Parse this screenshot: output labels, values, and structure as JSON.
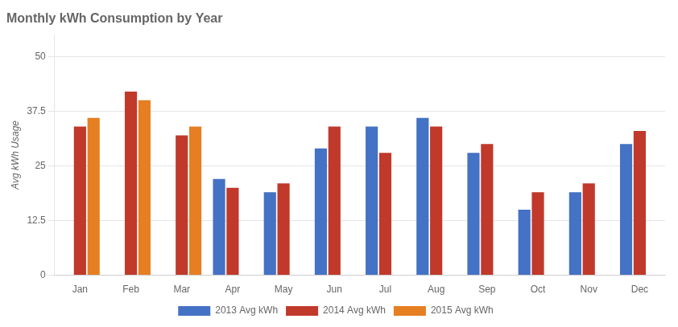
{
  "chart_data": {
    "type": "bar",
    "title": "Monthly kWh Consumption by Year",
    "ylabel": "Avg kWh Usage",
    "categories": [
      "Jan",
      "Feb",
      "Mar",
      "Apr",
      "May",
      "Jun",
      "Jul",
      "Aug",
      "Sep",
      "Oct",
      "Nov",
      "Dec"
    ],
    "series": [
      {
        "name": "2013 Avg kWh",
        "color": "#4472C4",
        "values": [
          null,
          null,
          null,
          22,
          19,
          29,
          34,
          36,
          28,
          15,
          19,
          30
        ]
      },
      {
        "name": "2014 Avg kWh",
        "color": "#C0392B",
        "values": [
          34,
          42,
          32,
          20,
          21,
          34,
          28,
          34,
          30,
          19,
          21,
          33
        ]
      },
      {
        "name": "2015 Avg kWh",
        "color": "#E67E22",
        "values": [
          36,
          40,
          34,
          null,
          null,
          null,
          null,
          null,
          null,
          null,
          null,
          null
        ]
      }
    ],
    "ylim": [
      0,
      55
    ],
    "yticks": [
      0,
      12.5,
      25,
      37.5,
      50
    ],
    "grid": true,
    "legend": "bottom"
  }
}
